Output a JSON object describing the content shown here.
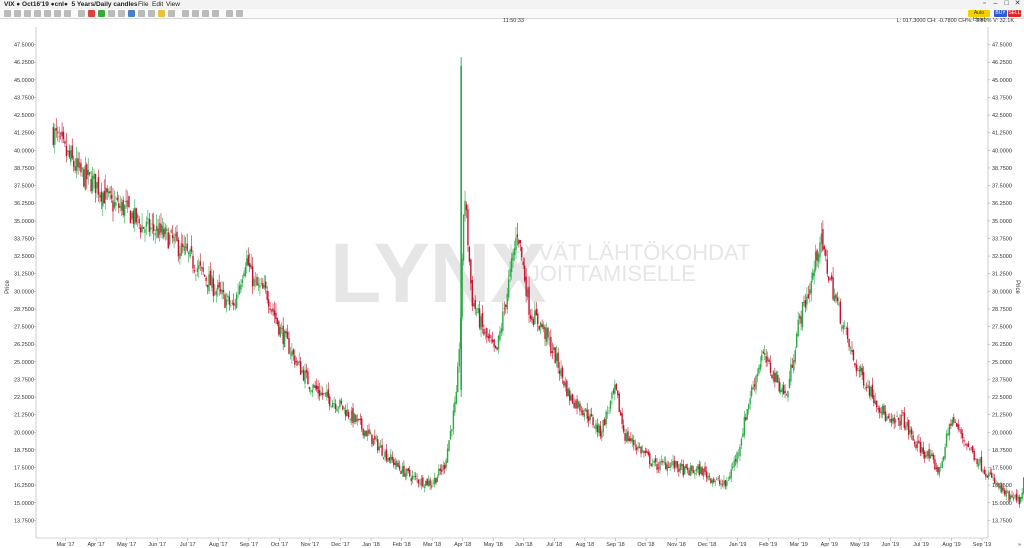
{
  "window": {
    "title": "VIX ● Oct16'19 ●cnl●",
    "subtitle": "5 Years/Daily candles",
    "menu": [
      "File",
      "Edit",
      "View"
    ]
  },
  "toolbar": {
    "auto_label": "Auto Hotel",
    "buy_label": "BUY",
    "sell_label": "SELL"
  },
  "info": {
    "time": "11:50:33",
    "quote": "L: 017.3000 CH: -0.7800 CH%: -3.89% V: 32.1K"
  },
  "watermark": {
    "brand": "LYNX",
    "line1": "HYVÄT LÄHTÖKOHDAT",
    "line2": "SIJOITTAMISELLE"
  },
  "chart_data": {
    "type": "candlestick",
    "title": "",
    "ylabel": "Price",
    "ylim": [
      12.5,
      48.75
    ],
    "y_ticks": [
      13.75,
      15.0,
      16.25,
      17.5,
      18.75,
      20.0,
      21.25,
      22.5,
      23.75,
      25.0,
      26.25,
      27.5,
      28.75,
      30.0,
      31.25,
      32.5,
      33.75,
      35.0,
      36.25,
      37.5,
      38.75,
      40.0,
      41.25,
      42.5,
      43.75,
      45.0,
      46.25,
      47.5
    ],
    "y_tick_labels": [
      "13.7500",
      "15.0000",
      "16.2500",
      "17.5000",
      "18.7500",
      "20.0000",
      "21.2500",
      "22.5000",
      "23.7500",
      "25.0000",
      "26.2500",
      "27.5000",
      "28.7500",
      "30.0000",
      "31.2500",
      "32.5000",
      "33.7500",
      "35.0000",
      "36.2500",
      "37.5000",
      "38.7500",
      "40.0000",
      "41.2500",
      "42.5000",
      "43.7500",
      "45.0000",
      "46.2500",
      "47.5000"
    ],
    "x_ticks": [
      "Mar '17",
      "Apr '17",
      "May '17",
      "Jun '17",
      "Jul '17",
      "Aug '17",
      "Sep '17",
      "Oct '17",
      "Nov '17",
      "Dec '17",
      "Jan '18",
      "Feb '18",
      "Mar '18",
      "Apr '18",
      "May '18",
      "Jun '18",
      "Jul '18",
      "Aug '18",
      "Sep '18",
      "Oct '18",
      "Nov '18",
      "Dec '18",
      "Jan '19",
      "Feb '19",
      "Mar '19",
      "Apr '19",
      "May '19",
      "Jun '19",
      "Jul '19",
      "Aug '19",
      "Sep '19"
    ],
    "x_range_months": [
      1.6,
      32.5
    ],
    "series": [
      {
        "values": [
          [
            1.6,
            41.3
          ],
          [
            2.0,
            39.8
          ],
          [
            2.5,
            38.3
          ],
          [
            3.0,
            37.6
          ],
          [
            3.5,
            36.2
          ],
          [
            4.0,
            35.8
          ],
          [
            4.5,
            34.6
          ],
          [
            5.0,
            34.3
          ],
          [
            5.5,
            33.6
          ],
          [
            6.0,
            32.5
          ],
          [
            6.5,
            31.2
          ],
          [
            7.0,
            29.9
          ],
          [
            7.5,
            28.8
          ],
          [
            7.9,
            32.4
          ],
          [
            8.2,
            30.4
          ],
          [
            8.6,
            29.8
          ],
          [
            9.0,
            27.4
          ],
          [
            9.5,
            25.2
          ],
          [
            10.0,
            23.4
          ],
          [
            10.5,
            22.5
          ],
          [
            11.0,
            21.9
          ],
          [
            11.5,
            20.8
          ],
          [
            12.0,
            19.6
          ],
          [
            12.5,
            18.4
          ],
          [
            13.0,
            17.3
          ],
          [
            13.5,
            16.6
          ],
          [
            14.0,
            16.4
          ],
          [
            14.4,
            17.6
          ],
          [
            14.8,
            22.5
          ],
          [
            14.95,
            29.0
          ],
          [
            15.05,
            37.5
          ],
          [
            15.3,
            29.5
          ],
          [
            15.7,
            27.0
          ],
          [
            16.1,
            25.5
          ],
          [
            16.5,
            30.5
          ],
          [
            16.8,
            34.4
          ],
          [
            17.2,
            28.5
          ],
          [
            17.6,
            27.5
          ],
          [
            18.0,
            25.5
          ],
          [
            18.5,
            22.5
          ],
          [
            19.0,
            21.5
          ],
          [
            19.5,
            20.0
          ],
          [
            20.0,
            23.0
          ],
          [
            20.3,
            19.8
          ],
          [
            20.8,
            18.8
          ],
          [
            21.3,
            17.6
          ],
          [
            21.8,
            17.8
          ],
          [
            22.3,
            17.2
          ],
          [
            22.8,
            17.3
          ],
          [
            23.3,
            16.5
          ],
          [
            23.6,
            16.2
          ],
          [
            24.0,
            18.5
          ],
          [
            24.4,
            22.5
          ],
          [
            24.8,
            25.5
          ],
          [
            25.2,
            24.0
          ],
          [
            25.6,
            22.5
          ],
          [
            26.0,
            27.8
          ],
          [
            26.4,
            30.5
          ],
          [
            26.7,
            33.8
          ],
          [
            27.0,
            31.0
          ],
          [
            27.4,
            28.0
          ],
          [
            27.8,
            25.0
          ],
          [
            28.2,
            23.5
          ],
          [
            28.6,
            22.0
          ],
          [
            29.0,
            20.5
          ],
          [
            29.4,
            21.0
          ],
          [
            29.8,
            19.2
          ],
          [
            30.2,
            18.4
          ],
          [
            30.6,
            17.2
          ],
          [
            31.0,
            21.0
          ],
          [
            31.4,
            19.5
          ],
          [
            31.8,
            18.2
          ],
          [
            32.2,
            17.0
          ],
          [
            32.5,
            16.2
          ],
          [
            32.9,
            15.3
          ],
          [
            33.3,
            15.2
          ],
          [
            33.6,
            21.3
          ],
          [
            34.0,
            19.0
          ],
          [
            34.4,
            21.5
          ],
          [
            34.8,
            17.6
          ],
          [
            35.2,
            17.3
          ]
        ]
      }
    ],
    "axes_on": [
      "left",
      "right",
      "bottom"
    ],
    "grid": false
  }
}
